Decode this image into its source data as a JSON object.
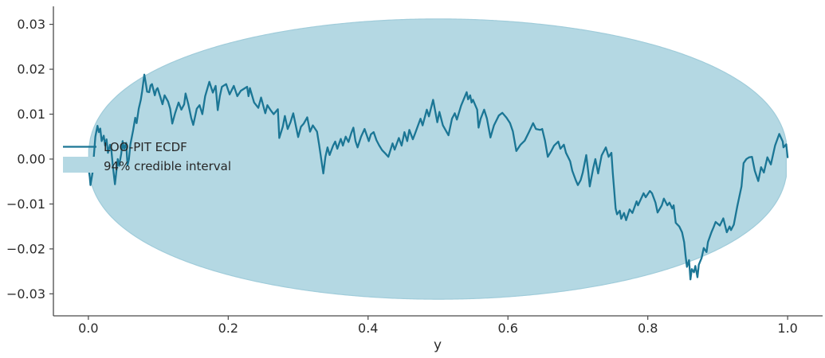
{
  "figure": {
    "background": "#ffffff"
  },
  "styles": {
    "text_color": "#2b2b2b",
    "axis_color": "#4a4a4a",
    "line_color": "#1b7695",
    "band_fill": "#b4d8e3",
    "band_edge": "#a0ccda"
  },
  "chart_data": {
    "type": "line",
    "title": "",
    "xlabel": "y",
    "ylabel": "",
    "xlim": [
      -0.05,
      1.05
    ],
    "ylim": [
      -0.0349,
      0.034
    ],
    "grid": false,
    "x_ticks": {
      "values": [
        0.0,
        0.2,
        0.4,
        0.6,
        0.8,
        1.0
      ],
      "labels": [
        "0.0",
        "0.2",
        "0.4",
        "0.6",
        "0.8",
        "1.0"
      ]
    },
    "y_ticks": {
      "values": [
        0.03,
        0.02,
        0.01,
        0.0,
        -0.01,
        -0.02,
        -0.03
      ],
      "labels": [
        "0.03",
        "0.02",
        "0.01",
        "0.00",
        "−0.01",
        "−0.02",
        "−0.03"
      ]
    },
    "legend": {
      "position": "center left",
      "frame": false,
      "entries": [
        {
          "type": "line",
          "label": "LOO-PIT ECDF",
          "color": "#1b7695"
        },
        {
          "type": "patch",
          "label": "94% credible interval",
          "color": "#b4d8e3"
        }
      ]
    },
    "band": {
      "name": "94% credible interval",
      "shape": "oval",
      "center_y": 0,
      "x_range": [
        0,
        1
      ],
      "fill": "#b4d8e3",
      "edge": "#a0ccda",
      "envelope": {
        "amplitude": 0.0312,
        "exponent": 0.43
      },
      "envelope_samples": [
        [
          0,
          0
        ],
        [
          0.01,
          0.0086
        ],
        [
          0.025,
          0.0123
        ],
        [
          0.05,
          0.0161
        ],
        [
          0.1,
          0.0207
        ],
        [
          0.15,
          0.0238
        ],
        [
          0.2,
          0.0261
        ],
        [
          0.25,
          0.0278
        ],
        [
          0.3,
          0.0291
        ],
        [
          0.35,
          0.03
        ],
        [
          0.4,
          0.0307
        ],
        [
          0.45,
          0.0311
        ],
        [
          0.5,
          0.0312
        ],
        [
          0.55,
          0.0311
        ],
        [
          0.6,
          0.0307
        ],
        [
          0.65,
          0.03
        ],
        [
          0.7,
          0.0291
        ],
        [
          0.75,
          0.0278
        ],
        [
          0.8,
          0.0261
        ],
        [
          0.85,
          0.0238
        ],
        [
          0.9,
          0.0207
        ],
        [
          0.95,
          0.0161
        ],
        [
          0.975,
          0.0123
        ],
        [
          0.99,
          0.0086
        ],
        [
          1,
          0
        ]
      ]
    },
    "series": [
      {
        "name": "LOO-PIT ECDF",
        "color": "#1b7695",
        "linewidth": 2.3,
        "points": [
          [
            0.0,
            -0.0018
          ],
          [
            0.002,
            -0.004
          ],
          [
            0.003,
            -0.0058
          ],
          [
            0.006,
            -0.003
          ],
          [
            0.008,
            0.001
          ],
          [
            0.01,
            0.005
          ],
          [
            0.013,
            0.0074
          ],
          [
            0.015,
            0.006
          ],
          [
            0.017,
            0.0068
          ],
          [
            0.019,
            0.004
          ],
          [
            0.022,
            0.0052
          ],
          [
            0.024,
            0.003
          ],
          [
            0.026,
            0.0044
          ],
          [
            0.028,
            0.0014
          ],
          [
            0.031,
            0.0032
          ],
          [
            0.033,
            0.0018
          ],
          [
            0.035,
            -0.0015
          ],
          [
            0.038,
            -0.0056
          ],
          [
            0.04,
            -0.0028
          ],
          [
            0.042,
            0.0
          ],
          [
            0.044,
            -0.0015
          ],
          [
            0.047,
            0.0012
          ],
          [
            0.049,
            0.004
          ],
          [
            0.051,
            0.0022
          ],
          [
            0.054,
            0.0036
          ],
          [
            0.056,
            -0.0014
          ],
          [
            0.058,
            0.0
          ],
          [
            0.06,
            0.0032
          ],
          [
            0.064,
            0.0064
          ],
          [
            0.067,
            0.0092
          ],
          [
            0.069,
            0.008
          ],
          [
            0.072,
            0.0112
          ],
          [
            0.075,
            0.0132
          ],
          [
            0.077,
            0.0152
          ],
          [
            0.08,
            0.0188
          ],
          [
            0.082,
            0.017
          ],
          [
            0.084,
            0.015
          ],
          [
            0.087,
            0.0149
          ],
          [
            0.089,
            0.0164
          ],
          [
            0.091,
            0.0167
          ],
          [
            0.095,
            0.0142
          ],
          [
            0.097,
            0.0154
          ],
          [
            0.099,
            0.0158
          ],
          [
            0.103,
            0.0138
          ],
          [
            0.106,
            0.0122
          ],
          [
            0.109,
            0.0142
          ],
          [
            0.114,
            0.0128
          ],
          [
            0.117,
            0.0112
          ],
          [
            0.12,
            0.0079
          ],
          [
            0.124,
            0.0102
          ],
          [
            0.129,
            0.0126
          ],
          [
            0.133,
            0.011
          ],
          [
            0.137,
            0.0122
          ],
          [
            0.139,
            0.0146
          ],
          [
            0.143,
            0.0122
          ],
          [
            0.147,
            0.0092
          ],
          [
            0.15,
            0.0076
          ],
          [
            0.155,
            0.0112
          ],
          [
            0.159,
            0.012
          ],
          [
            0.163,
            0.01
          ],
          [
            0.167,
            0.014
          ],
          [
            0.173,
            0.0172
          ],
          [
            0.178,
            0.0148
          ],
          [
            0.182,
            0.0163
          ],
          [
            0.185,
            0.0109
          ],
          [
            0.188,
            0.014
          ],
          [
            0.191,
            0.0161
          ],
          [
            0.197,
            0.0167
          ],
          [
            0.202,
            0.0144
          ],
          [
            0.208,
            0.0163
          ],
          [
            0.213,
            0.014
          ],
          [
            0.218,
            0.0152
          ],
          [
            0.222,
            0.0156
          ],
          [
            0.227,
            0.0161
          ],
          [
            0.229,
            0.014
          ],
          [
            0.231,
            0.0158
          ],
          [
            0.237,
            0.0126
          ],
          [
            0.243,
            0.0114
          ],
          [
            0.247,
            0.0137
          ],
          [
            0.253,
            0.0102
          ],
          [
            0.256,
            0.012
          ],
          [
            0.261,
            0.0108
          ],
          [
            0.265,
            0.01
          ],
          [
            0.271,
            0.0111
          ],
          [
            0.273,
            0.0047
          ],
          [
            0.278,
            0.0072
          ],
          [
            0.281,
            0.0096
          ],
          [
            0.285,
            0.0067
          ],
          [
            0.289,
            0.0082
          ],
          [
            0.293,
            0.0102
          ],
          [
            0.3,
            0.0049
          ],
          [
            0.304,
            0.0072
          ],
          [
            0.308,
            0.0079
          ],
          [
            0.313,
            0.0093
          ],
          [
            0.317,
            0.0061
          ],
          [
            0.321,
            0.0075
          ],
          [
            0.327,
            0.0061
          ],
          [
            0.33,
            0.0032
          ],
          [
            0.336,
            -0.0032
          ],
          [
            0.339,
            0.0005
          ],
          [
            0.342,
            0.0026
          ],
          [
            0.345,
            0.0009
          ],
          [
            0.35,
            0.003
          ],
          [
            0.353,
            0.0039
          ],
          [
            0.356,
            0.0023
          ],
          [
            0.361,
            0.0045
          ],
          [
            0.364,
            0.003
          ],
          [
            0.368,
            0.005
          ],
          [
            0.372,
            0.0038
          ],
          [
            0.376,
            0.0058
          ],
          [
            0.379,
            0.007
          ],
          [
            0.382,
            0.004
          ],
          [
            0.385,
            0.0026
          ],
          [
            0.39,
            0.005
          ],
          [
            0.395,
            0.0067
          ],
          [
            0.401,
            0.004
          ],
          [
            0.404,
            0.0055
          ],
          [
            0.408,
            0.006
          ],
          [
            0.412,
            0.0042
          ],
          [
            0.416,
            0.003
          ],
          [
            0.42,
            0.002
          ],
          [
            0.425,
            0.0012
          ],
          [
            0.429,
            0.0005
          ],
          [
            0.435,
            0.0035
          ],
          [
            0.438,
            0.0021
          ],
          [
            0.444,
            0.0047
          ],
          [
            0.448,
            0.003
          ],
          [
            0.452,
            0.006
          ],
          [
            0.456,
            0.004
          ],
          [
            0.459,
            0.0065
          ],
          [
            0.464,
            0.0044
          ],
          [
            0.467,
            0.0056
          ],
          [
            0.475,
            0.009
          ],
          [
            0.478,
            0.0075
          ],
          [
            0.484,
            0.011
          ],
          [
            0.487,
            0.0095
          ],
          [
            0.493,
            0.0132
          ],
          [
            0.499,
            0.0082
          ],
          [
            0.502,
            0.0105
          ],
          [
            0.507,
            0.0075
          ],
          [
            0.515,
            0.0053
          ],
          [
            0.52,
            0.009
          ],
          [
            0.524,
            0.0102
          ],
          [
            0.527,
            0.0088
          ],
          [
            0.533,
            0.0119
          ],
          [
            0.541,
            0.0149
          ],
          [
            0.543,
            0.0133
          ],
          [
            0.546,
            0.0142
          ],
          [
            0.548,
            0.0126
          ],
          [
            0.55,
            0.0132
          ],
          [
            0.556,
            0.011
          ],
          [
            0.558,
            0.007
          ],
          [
            0.561,
            0.009
          ],
          [
            0.566,
            0.011
          ],
          [
            0.57,
            0.009
          ],
          [
            0.575,
            0.0048
          ],
          [
            0.58,
            0.0075
          ],
          [
            0.587,
            0.0097
          ],
          [
            0.592,
            0.0103
          ],
          [
            0.598,
            0.0092
          ],
          [
            0.603,
            0.008
          ],
          [
            0.607,
            0.0062
          ],
          [
            0.612,
            0.0018
          ],
          [
            0.618,
            0.0032
          ],
          [
            0.624,
            0.0041
          ],
          [
            0.63,
            0.006
          ],
          [
            0.636,
            0.008
          ],
          [
            0.64,
            0.0067
          ],
          [
            0.646,
            0.0065
          ],
          [
            0.649,
            0.0067
          ],
          [
            0.653,
            0.0041
          ],
          [
            0.657,
            0.0005
          ],
          [
            0.662,
            0.0018
          ],
          [
            0.666,
            0.003
          ],
          [
            0.672,
            0.0039
          ],
          [
            0.675,
            0.0023
          ],
          [
            0.68,
            0.0032
          ],
          [
            0.683,
            0.0014
          ],
          [
            0.689,
            -0.0005
          ],
          [
            0.692,
            -0.0026
          ],
          [
            0.697,
            -0.0047
          ],
          [
            0.7,
            -0.0058
          ],
          [
            0.704,
            -0.0047
          ],
          [
            0.707,
            -0.003
          ],
          [
            0.712,
            0.0009
          ],
          [
            0.715,
            -0.003
          ],
          [
            0.717,
            -0.0061
          ],
          [
            0.722,
            -0.002
          ],
          [
            0.725,
            0.0
          ],
          [
            0.729,
            -0.0032
          ],
          [
            0.734,
            0.0008
          ],
          [
            0.74,
            0.0026
          ],
          [
            0.744,
            0.0005
          ],
          [
            0.748,
            0.0014
          ],
          [
            0.75,
            -0.0032
          ],
          [
            0.752,
            -0.007
          ],
          [
            0.754,
            -0.011
          ],
          [
            0.756,
            -0.0123
          ],
          [
            0.76,
            -0.0115
          ],
          [
            0.762,
            -0.0133
          ],
          [
            0.766,
            -0.012
          ],
          [
            0.769,
            -0.0136
          ],
          [
            0.774,
            -0.0112
          ],
          [
            0.778,
            -0.012
          ],
          [
            0.784,
            -0.0094
          ],
          [
            0.786,
            -0.0103
          ],
          [
            0.794,
            -0.0076
          ],
          [
            0.797,
            -0.0085
          ],
          [
            0.803,
            -0.0071
          ],
          [
            0.806,
            -0.0076
          ],
          [
            0.811,
            -0.0097
          ],
          [
            0.814,
            -0.0119
          ],
          [
            0.82,
            -0.0103
          ],
          [
            0.823,
            -0.0088
          ],
          [
            0.828,
            -0.0103
          ],
          [
            0.831,
            -0.0097
          ],
          [
            0.835,
            -0.011
          ],
          [
            0.837,
            -0.0103
          ],
          [
            0.84,
            -0.0142
          ],
          [
            0.845,
            -0.015
          ],
          [
            0.849,
            -0.0163
          ],
          [
            0.852,
            -0.0185
          ],
          [
            0.854,
            -0.0215
          ],
          [
            0.856,
            -0.024
          ],
          [
            0.859,
            -0.0225
          ],
          [
            0.861,
            -0.0268
          ],
          [
            0.863,
            -0.0245
          ],
          [
            0.866,
            -0.0252
          ],
          [
            0.868,
            -0.0238
          ],
          [
            0.871,
            -0.0263
          ],
          [
            0.873,
            -0.0235
          ],
          [
            0.877,
            -0.022
          ],
          [
            0.88,
            -0.0198
          ],
          [
            0.884,
            -0.0207
          ],
          [
            0.886,
            -0.0185
          ],
          [
            0.891,
            -0.0163
          ],
          [
            0.894,
            -0.0152
          ],
          [
            0.897,
            -0.014
          ],
          [
            0.903,
            -0.0148
          ],
          [
            0.908,
            -0.0132
          ],
          [
            0.913,
            -0.0163
          ],
          [
            0.917,
            -0.015
          ],
          [
            0.919,
            -0.0158
          ],
          [
            0.923,
            -0.0146
          ],
          [
            0.928,
            -0.0105
          ],
          [
            0.934,
            -0.0061
          ],
          [
            0.937,
            -0.0009
          ],
          [
            0.941,
            0.0
          ],
          [
            0.945,
            0.0004
          ],
          [
            0.949,
            0.0005
          ],
          [
            0.953,
            -0.0026
          ],
          [
            0.958,
            -0.0049
          ],
          [
            0.962,
            -0.0018
          ],
          [
            0.966,
            -0.003
          ],
          [
            0.971,
            0.0004
          ],
          [
            0.976,
            -0.0012
          ],
          [
            0.982,
            0.003
          ],
          [
            0.988,
            0.0056
          ],
          [
            0.993,
            0.0039
          ],
          [
            0.994,
            0.0026
          ],
          [
            0.998,
            0.0033
          ],
          [
            1.0,
            0.0004
          ]
        ]
      }
    ]
  }
}
